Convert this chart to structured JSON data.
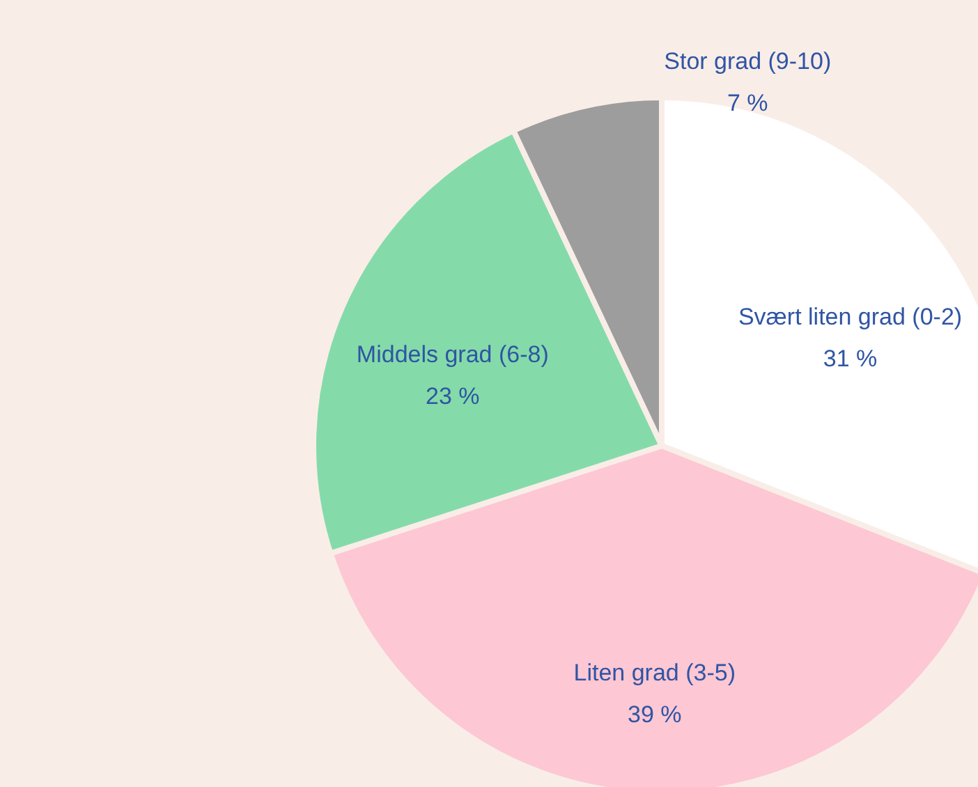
{
  "chart_data": {
    "type": "pie",
    "categories": [
      "Svært liten grad (0-2)",
      "Liten grad (3-5)",
      "Middels grad (6-8)",
      "Stor grad (9-10)"
    ],
    "values": [
      31,
      39,
      23,
      7
    ],
    "colors": [
      "#ffffff",
      "#fdc7d3",
      "#84dba9",
      "#9d9d9d"
    ],
    "value_labels": [
      "31 %",
      "39 %",
      "23 %",
      "7 %"
    ]
  }
}
